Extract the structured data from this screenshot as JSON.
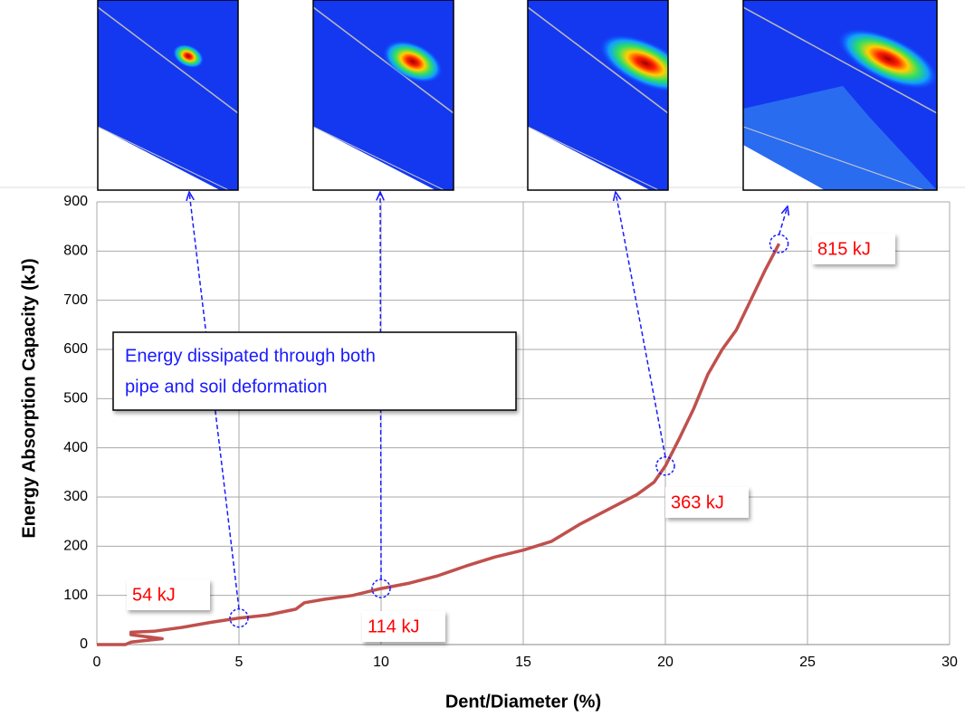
{
  "chart_data": {
    "type": "line",
    "x_label": "Dent/Diameter (%)",
    "y_label": "Energy Absorption Capacity (kJ)",
    "x": [
      0,
      1.0,
      1.2,
      2.3,
      1.2,
      1.2,
      2,
      3,
      4,
      5,
      6,
      7,
      7.3,
      8,
      9,
      10,
      11,
      12,
      13,
      14,
      15,
      16,
      17,
      18,
      19,
      19.6,
      20,
      20.5,
      21,
      21.5,
      22,
      22.5,
      23,
      23.5,
      24
    ],
    "values": [
      0,
      0,
      5,
      12,
      20,
      25,
      27,
      35,
      45,
      54,
      60,
      72,
      85,
      92,
      100,
      114,
      125,
      140,
      160,
      178,
      192,
      210,
      245,
      275,
      305,
      330,
      363,
      420,
      480,
      550,
      600,
      640,
      700,
      760,
      815
    ],
    "color": "#c0504d",
    "xlim": [
      0,
      30
    ],
    "xticks": [
      0,
      5,
      10,
      15,
      20,
      25,
      30
    ],
    "ylim": [
      0,
      900
    ],
    "yticks": [
      0,
      100,
      200,
      300,
      400,
      500,
      600,
      700,
      800,
      900
    ],
    "grid": true,
    "annotations": [
      {
        "label": "54 kJ",
        "x": 5,
        "y": 54
      },
      {
        "label": "114 kJ",
        "x": 10,
        "y": 114
      },
      {
        "label": "363 kJ",
        "x": 20,
        "y": 363
      },
      {
        "label": "815 kJ",
        "x": 24,
        "y": 815
      }
    ],
    "callout": [
      "Energy dissipated through both",
      "pipe and soil deformation"
    ]
  }
}
